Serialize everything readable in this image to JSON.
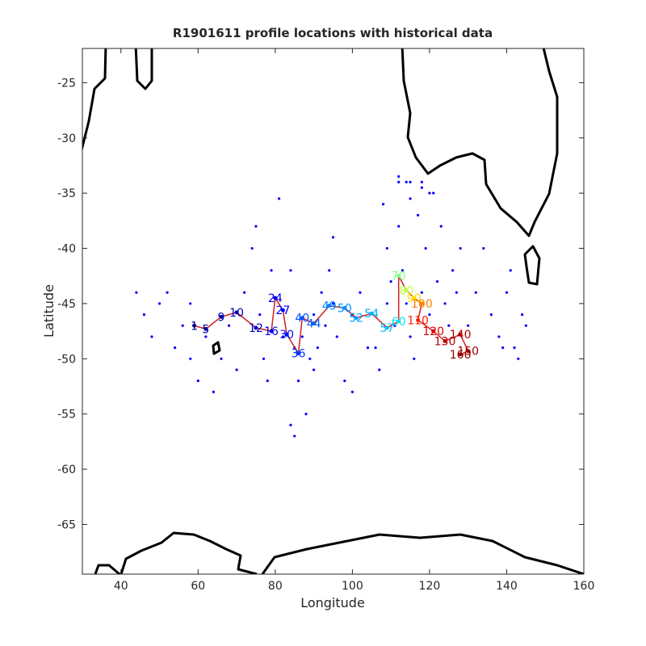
{
  "chart_data": {
    "type": "scatter",
    "title": "R1901611 profile locations with historical data",
    "x_label": "Longitude",
    "y_label": "Latitude",
    "xlim": [
      30,
      160
    ],
    "ylim": [
      -69.5,
      -21.9
    ],
    "xticks": [
      40,
      60,
      80,
      100,
      120,
      140,
      160
    ],
    "yticks": [
      -25,
      -30,
      -35,
      -40,
      -45,
      -50,
      -55,
      -60,
      -65
    ],
    "series": [
      {
        "color": "#0000ff",
        "x": [
          44,
          46,
          48,
          50,
          52,
          54,
          56,
          58,
          58,
          60,
          62,
          64,
          66,
          68,
          70,
          72,
          74,
          75,
          76,
          77,
          78,
          79,
          81,
          82,
          84,
          85,
          86,
          87,
          88,
          89,
          90,
          91,
          92,
          93,
          94,
          95,
          95,
          96,
          98,
          100,
          102,
          104,
          107,
          108,
          109,
          110,
          111,
          112,
          112,
          113,
          114,
          114,
          115,
          115,
          116,
          117,
          118,
          118,
          119,
          120,
          120,
          122,
          123,
          124,
          125,
          126,
          127,
          128,
          130,
          132,
          134,
          136,
          138,
          139,
          140,
          141,
          142,
          143,
          144,
          145,
          112,
          115,
          118,
          121,
          84,
          85,
          90,
          100,
          106,
          109
        ],
        "y": [
          -44,
          -46,
          -48,
          -45,
          -44,
          -49,
          -47,
          -50,
          -45,
          -52,
          -48,
          -53,
          -50,
          -47,
          -51,
          -44,
          -40,
          -38,
          -46,
          -50,
          -52,
          -42,
          -35.5,
          -48,
          -56,
          -57,
          -52,
          -48,
          -55,
          -50,
          -46,
          -49,
          -44,
          -47,
          -42,
          -39,
          -45,
          -48,
          -52,
          -46,
          -44,
          -49,
          -51,
          -36,
          -40,
          -43,
          -47,
          -33.5,
          -38,
          -42,
          -34,
          -45,
          -35.5,
          -48,
          -50,
          -37,
          -44,
          -34.5,
          -40,
          -46,
          -35,
          -43,
          -38,
          -45,
          -47,
          -42,
          -44,
          -40,
          -47,
          -44,
          -40,
          -46,
          -48,
          -49,
          -44,
          -42,
          -49,
          -50,
          -46,
          -47,
          -34,
          -34,
          -34,
          -35,
          -42,
          -49,
          -51,
          -53,
          -49,
          -45
        ]
      }
    ],
    "profiles": {
      "x": [
        59,
        62,
        66,
        70,
        75,
        79,
        80,
        82,
        83,
        86,
        87,
        90,
        94,
        98,
        101,
        105,
        109,
        112,
        112,
        114,
        116,
        118,
        117,
        121,
        124,
        128,
        130,
        128
      ],
      "y": [
        -47.0,
        -47.3,
        -46.2,
        -45.8,
        -47.2,
        -47.5,
        -44.5,
        -45.6,
        -47.8,
        -49.5,
        -46.3,
        -46.8,
        -45.2,
        -45.4,
        -46.3,
        -45.9,
        -47.2,
        -46.6,
        -42.5,
        -43.8,
        -44.5,
        -45.0,
        -46.5,
        -47.5,
        -48.4,
        -47.8,
        -49.3,
        -49.6
      ],
      "labels": [
        "1",
        "5",
        "9",
        "10",
        "12",
        "16",
        "24",
        "27",
        "30",
        "36",
        "40",
        "44",
        "49",
        "50",
        "52",
        "54",
        "57",
        "60",
        "70",
        "80",
        "90",
        "100",
        "110",
        "120",
        "130",
        "140",
        "150",
        "160"
      ],
      "colors": [
        "#00008f",
        "#00009f",
        "#0000af",
        "#0000bf",
        "#0000cf",
        "#0000df",
        "#0000ef",
        "#0000ff",
        "#0010ff",
        "#0030ff",
        "#0050ff",
        "#0060ff",
        "#0080ff",
        "#0090ff",
        "#00a0ff",
        "#00b0ff",
        "#00c0ff",
        "#10e0ef",
        "#80ff80",
        "#c0ff40",
        "#ffe000",
        "#ff8000",
        "#ff2000",
        "#e00000",
        "#c00000",
        "#b00000",
        "#a00000",
        "#900000"
      ],
      "line_color": "#d02020"
    }
  }
}
